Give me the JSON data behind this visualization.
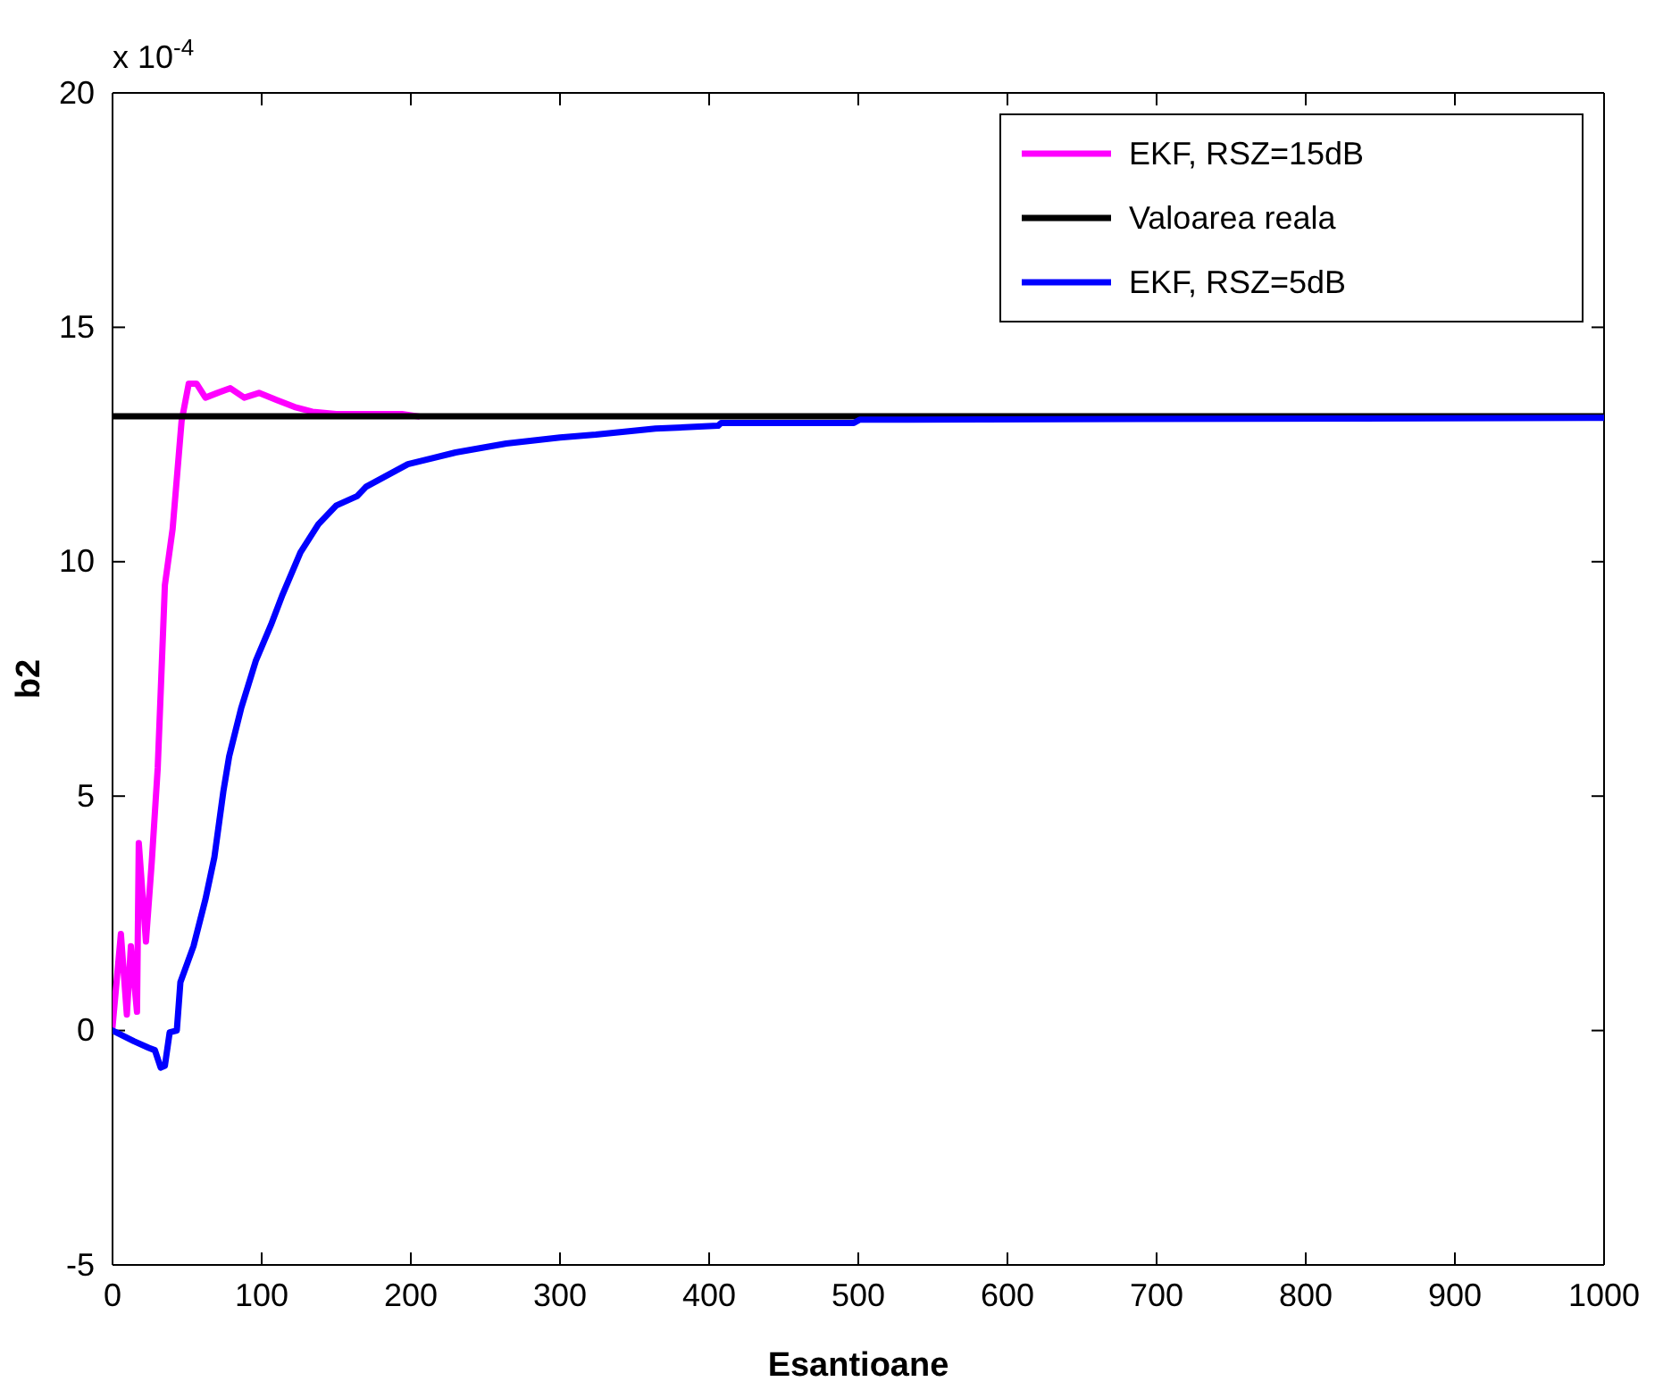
{
  "chart_data": {
    "type": "line",
    "xlabel": "Esantioane",
    "ylabel": "b2",
    "annotations": [
      "x 10$^{-4}$"
    ],
    "xlim": [
      0,
      1000
    ],
    "ylim": [
      -5,
      20
    ],
    "xticks": [
      0,
      100,
      200,
      300,
      400,
      500,
      600,
      700,
      800,
      900,
      1000
    ],
    "yticks": [
      -5,
      0,
      5,
      10,
      15,
      20
    ],
    "grid": false,
    "legend": "top right",
    "marker": "none",
    "line_style": "solid",
    "series": [
      {
        "name": "EKF, RSZ=15dB",
        "color": "#ff00ff",
        "x": [
          0,
          5.6,
          9.6,
          12.3,
          16.4,
          17.6,
          22.4,
          26.3,
          30.3,
          35.1,
          40.3,
          46.3,
          51.1,
          56.3,
          62.3,
          70.3,
          79,
          88.3,
          98.2,
          110,
          122,
          134,
          150,
          194,
          205
        ],
        "values": [
          0.08,
          2.06,
          0.34,
          1.8,
          0.4,
          4.0,
          1.9,
          3.6,
          5.6,
          9.5,
          10.7,
          13.0,
          13.8,
          13.8,
          13.5,
          13.6,
          13.7,
          13.5,
          13.6,
          13.45,
          13.3,
          13.2,
          13.15,
          13.15,
          13.1
        ]
      },
      {
        "name": "Valoarea reala",
        "color": "#000000",
        "x": [
          0,
          1000
        ],
        "values": [
          13.1,
          13.1
        ]
      },
      {
        "name": "EKF, RSZ=5dB",
        "color": "#0000ff",
        "x": [
          0,
          14.4,
          24.3,
          28.4,
          32.3,
          35.1,
          38.3,
          43.1,
          45.5,
          54.3,
          62.3,
          68.3,
          74.3,
          78.2,
          86.2,
          96.2,
          106.2,
          114,
          126,
          138,
          150,
          164,
          170,
          198,
          230,
          264,
          300,
          324,
          364,
          406,
          408,
          497,
          501,
          760,
          1000
        ],
        "values": [
          0,
          -0.23,
          -0.37,
          -0.42,
          -0.79,
          -0.75,
          -0.04,
          0,
          1.03,
          1.8,
          2.8,
          3.7,
          5.1,
          5.85,
          6.87,
          7.9,
          8.65,
          9.3,
          10.2,
          10.8,
          11.2,
          11.4,
          11.6,
          12.08,
          12.33,
          12.52,
          12.65,
          12.71,
          12.84,
          12.9,
          12.96,
          12.96,
          13.03,
          13.05,
          13.07
        ]
      }
    ]
  }
}
